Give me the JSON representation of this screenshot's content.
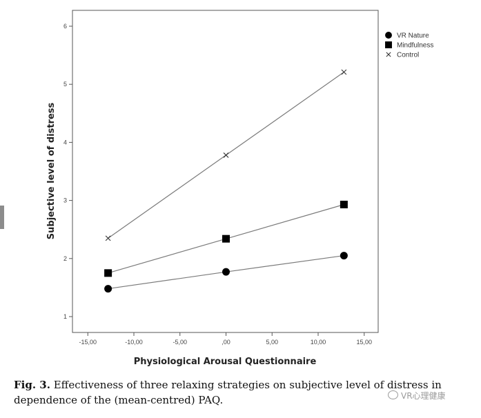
{
  "chart_data": {
    "type": "line",
    "xlabel": "Physiological Arousal Questionnaire",
    "ylabel": "Subjective level of distress",
    "x_ticks": [
      "-15,00",
      "-10,00",
      "-5,00",
      ",00",
      "5,00",
      "10,00",
      "15,00"
    ],
    "y_ticks": [
      "1",
      "2",
      "3",
      "4",
      "5",
      "6"
    ],
    "xlim": [
      -16,
      16
    ],
    "ylim": [
      0.8,
      6.3
    ],
    "grid": false,
    "legend_position": "top-right",
    "x": [
      -12.8,
      0,
      12.8
    ],
    "series": [
      {
        "name": "VR Nature",
        "marker": "circle",
        "values": [
          1.48,
          1.77,
          2.05
        ]
      },
      {
        "name": "Mindfulness",
        "marker": "square",
        "values": [
          1.75,
          2.34,
          2.93
        ]
      },
      {
        "name": "Control",
        "marker": "x",
        "values": [
          2.35,
          3.78,
          5.21
        ]
      }
    ],
    "line_color": "#7a7a7a",
    "marker_color": "#000000"
  },
  "caption": {
    "label": "Fig. 3.",
    "text": " Effectiveness of three relaxing strategies on subjective level of distress in dependence of the (mean-centred) PAQ."
  },
  "watermark": {
    "text": "VR心理健康",
    "icon": "wechat-icon"
  }
}
